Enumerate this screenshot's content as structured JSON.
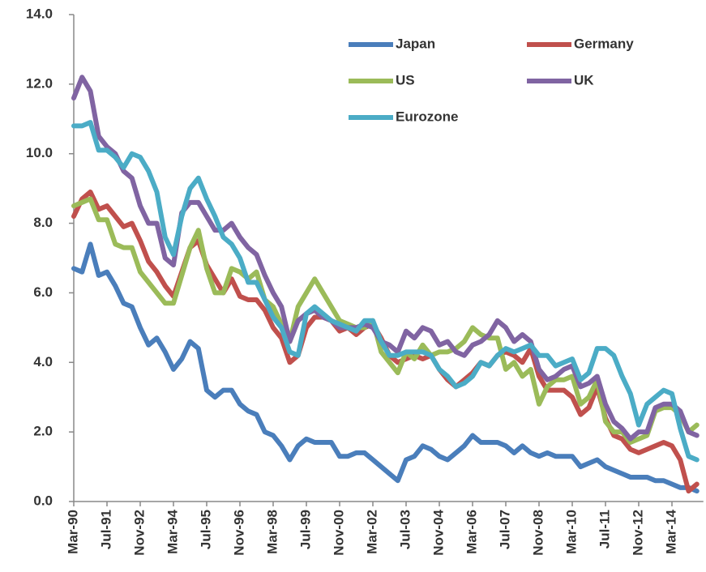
{
  "chart_data": {
    "type": "line",
    "categories": [
      "Mar-90",
      null,
      null,
      null,
      "Jul-91",
      null,
      null,
      null,
      "Nov-92",
      null,
      null,
      null,
      "Mar-94",
      null,
      null,
      null,
      "Jul-95",
      null,
      null,
      null,
      "Nov-96",
      null,
      null,
      null,
      "Mar-98",
      null,
      null,
      null,
      "Jul-99",
      null,
      null,
      null,
      "Nov-00",
      null,
      null,
      null,
      "Mar-02",
      null,
      null,
      null,
      "Jul-03",
      null,
      null,
      null,
      "Nov-04",
      null,
      null,
      null,
      "Mar-06",
      null,
      null,
      null,
      "Jul-07",
      null,
      null,
      null,
      "Nov-08",
      null,
      null,
      null,
      "Mar-10",
      null,
      null,
      null,
      "Jul-11",
      null,
      null,
      null,
      "Nov-12",
      null,
      null,
      null,
      "Mar-14",
      null,
      null,
      null
    ],
    "series": [
      {
        "name": "Japan",
        "color": "#4a7ebb",
        "values": [
          6.7,
          6.6,
          7.4,
          6.5,
          6.6,
          6.2,
          5.7,
          5.6,
          5.0,
          4.5,
          4.7,
          4.3,
          3.8,
          4.1,
          4.6,
          4.4,
          3.2,
          3.0,
          3.2,
          3.2,
          2.8,
          2.6,
          2.5,
          2.0,
          1.9,
          1.6,
          1.2,
          1.6,
          1.8,
          1.7,
          1.7,
          1.7,
          1.3,
          1.3,
          1.4,
          1.4,
          1.2,
          1.0,
          0.8,
          0.6,
          1.2,
          1.3,
          1.6,
          1.5,
          1.3,
          1.2,
          1.4,
          1.6,
          1.9,
          1.7,
          1.7,
          1.7,
          1.6,
          1.4,
          1.6,
          1.4,
          1.3,
          1.4,
          1.3,
          1.3,
          1.3,
          1.0,
          1.1,
          1.2,
          1.0,
          0.9,
          0.8,
          0.7,
          0.7,
          0.7,
          0.6,
          0.6,
          0.5,
          0.4,
          0.4,
          0.3
        ]
      },
      {
        "name": "Germany",
        "color": "#c0504d",
        "values": [
          8.2,
          8.7,
          8.9,
          8.4,
          8.5,
          8.2,
          7.9,
          8.0,
          7.5,
          6.9,
          6.6,
          6.2,
          5.9,
          6.6,
          7.3,
          7.5,
          6.8,
          6.4,
          6.0,
          6.4,
          5.9,
          5.8,
          5.8,
          5.5,
          5.0,
          4.7,
          4.0,
          4.2,
          5.0,
          5.3,
          5.3,
          5.2,
          4.9,
          5.0,
          4.8,
          5.0,
          5.1,
          4.7,
          4.2,
          4.0,
          4.1,
          4.2,
          4.1,
          4.2,
          3.8,
          3.5,
          3.3,
          3.5,
          3.7,
          4.0,
          3.9,
          4.2,
          4.3,
          4.2,
          4.0,
          4.4,
          3.6,
          3.2,
          3.2,
          3.2,
          3.0,
          2.5,
          2.7,
          3.3,
          2.4,
          1.9,
          1.8,
          1.5,
          1.4,
          1.5,
          1.6,
          1.7,
          1.6,
          1.2,
          0.3,
          0.5
        ]
      },
      {
        "name": "US",
        "color": "#9bbb59",
        "values": [
          8.5,
          8.6,
          8.7,
          8.1,
          8.1,
          7.4,
          7.3,
          7.3,
          6.6,
          6.3,
          6.0,
          5.7,
          5.7,
          6.5,
          7.3,
          7.8,
          6.7,
          6.0,
          6.0,
          6.7,
          6.6,
          6.4,
          6.6,
          5.8,
          5.6,
          5.1,
          4.6,
          5.6,
          6.0,
          6.4,
          6.0,
          5.6,
          5.2,
          5.1,
          5.0,
          5.0,
          5.2,
          4.3,
          4.0,
          3.7,
          4.3,
          4.1,
          4.5,
          4.2,
          4.3,
          4.3,
          4.4,
          4.6,
          5.0,
          4.8,
          4.7,
          4.7,
          3.8,
          4.0,
          3.6,
          3.8,
          2.8,
          3.3,
          3.5,
          3.5,
          3.6,
          2.8,
          3.0,
          3.5,
          2.3,
          2.0,
          2.0,
          1.7,
          1.8,
          1.9,
          2.6,
          2.7,
          2.7,
          2.5,
          2.0,
          2.2
        ]
      },
      {
        "name": "UK",
        "color": "#8064a2",
        "values": [
          11.6,
          12.2,
          11.8,
          10.5,
          10.2,
          10.0,
          9.5,
          9.3,
          8.5,
          8.0,
          8.0,
          7.0,
          6.8,
          8.3,
          8.6,
          8.6,
          8.2,
          7.8,
          7.8,
          8.0,
          7.6,
          7.3,
          7.1,
          6.5,
          6.0,
          5.6,
          4.6,
          5.2,
          5.4,
          5.5,
          5.3,
          5.2,
          5.0,
          5.0,
          5.0,
          5.1,
          5.0,
          4.6,
          4.5,
          4.3,
          4.9,
          4.7,
          5.0,
          4.9,
          4.5,
          4.6,
          4.3,
          4.2,
          4.5,
          4.6,
          4.8,
          5.2,
          5.0,
          4.6,
          4.8,
          4.6,
          3.8,
          3.5,
          3.6,
          3.8,
          3.9,
          3.3,
          3.4,
          3.6,
          2.8,
          2.3,
          2.1,
          1.8,
          2.0,
          2.0,
          2.7,
          2.8,
          2.8,
          2.6,
          2.0,
          1.9
        ]
      },
      {
        "name": "Eurozone",
        "color": "#4bacc6",
        "values": [
          10.8,
          10.8,
          10.9,
          10.1,
          10.1,
          9.9,
          9.6,
          10.0,
          9.9,
          9.5,
          8.9,
          7.6,
          7.1,
          8.2,
          9.0,
          9.3,
          8.7,
          8.2,
          7.6,
          7.4,
          7.0,
          6.3,
          6.3,
          5.8,
          5.3,
          5.0,
          4.3,
          4.2,
          5.4,
          5.6,
          5.4,
          5.2,
          5.1,
          5.0,
          4.9,
          5.2,
          5.2,
          4.6,
          4.2,
          4.2,
          4.3,
          4.3,
          4.3,
          4.2,
          3.8,
          3.6,
          3.3,
          3.4,
          3.6,
          4.0,
          3.9,
          4.2,
          4.4,
          4.3,
          4.4,
          4.5,
          4.2,
          4.2,
          3.9,
          4.0,
          4.1,
          3.5,
          3.7,
          4.4,
          4.4,
          4.2,
          3.6,
          3.1,
          2.2,
          2.8,
          3.0,
          3.2,
          3.1,
          2.1,
          1.3,
          1.2
        ]
      }
    ],
    "ylim": [
      0,
      14
    ],
    "yticks": [
      {
        "value": 0,
        "label": "0.0"
      },
      {
        "value": 2,
        "label": "2.0"
      },
      {
        "value": 4,
        "label": "4.0"
      },
      {
        "value": 6,
        "label": "6.0"
      },
      {
        "value": 8,
        "label": "8.0"
      },
      {
        "value": 10,
        "label": "10.0"
      },
      {
        "value": 12,
        "label": "12.0"
      },
      {
        "value": 14,
        "label": "14.0"
      }
    ],
    "grid": false,
    "legend": "top-right"
  }
}
